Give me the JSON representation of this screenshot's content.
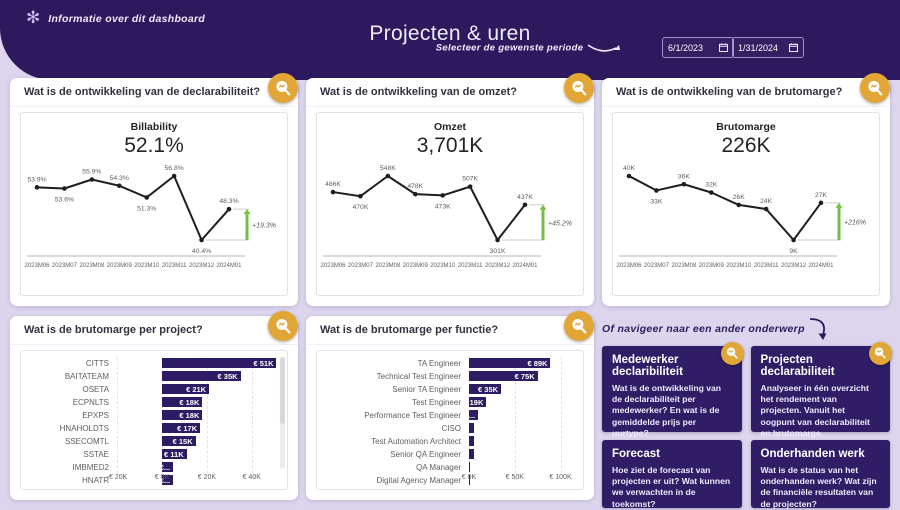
{
  "header": {
    "info_label": "Informatie over dit dashboard",
    "title": "Projecten & uren",
    "period_label": "Selecteer de  gewenste periode",
    "date_from": "6/1/2023",
    "date_to": "1/31/2024"
  },
  "panels": [
    {
      "question": "Wat is de ontwikkeling van de declarabiliteit?"
    },
    {
      "question": "Wat is de ontwikkeling van de omzet?"
    },
    {
      "question": "Wat is de ontwikkeling van de brutomarge?"
    },
    {
      "question": "Wat is de brutomarge per project?"
    },
    {
      "question": "Wat is de brutomarge per functie?"
    }
  ],
  "chart_data": [
    {
      "type": "line",
      "title": "Billability",
      "total": "52.1%",
      "x": [
        "2023M06",
        "2023M07",
        "2023M08",
        "2023M09",
        "2023M10",
        "2023M11",
        "2023M12",
        "2024M01"
      ],
      "values": [
        53.9,
        53.6,
        55.9,
        54.3,
        51.3,
        56.8,
        40.4,
        48.3
      ],
      "labels": [
        "53.9%",
        "53.6%",
        "55.9%",
        "54.3%",
        "51.3%",
        "56.8%",
        "40.4%",
        "48.3%"
      ],
      "change": "+19.3%"
    },
    {
      "type": "line",
      "title": "Omzet",
      "total": "3,701K",
      "x": [
        "2023M06",
        "2023M07",
        "2023M08",
        "2023M09",
        "2023M10",
        "2023M11",
        "2023M12",
        "2024M01"
      ],
      "values": [
        486,
        470,
        548,
        478,
        473,
        507,
        301,
        437
      ],
      "labels": [
        "486K",
        "470K",
        "548K",
        "478K",
        "473K",
        "507K",
        "301K",
        "437K"
      ],
      "change": "+45.2%"
    },
    {
      "type": "line",
      "title": "Brutomarge",
      "total": "226K",
      "x": [
        "2023M06",
        "2023M07",
        "2023M08",
        "2023M09",
        "2023M10",
        "2023M11",
        "2023M12",
        "2024M01"
      ],
      "values": [
        40,
        33,
        36,
        32,
        26,
        24,
        9,
        27
      ],
      "labels": [
        "40K",
        "33K",
        "36K",
        "32K",
        "26K",
        "24K",
        "9K",
        "27K"
      ],
      "change": "+216%"
    },
    {
      "type": "bar",
      "categories": [
        "CITTS",
        "BAITATEAM",
        "OSETA",
        "ECPNLTS",
        "EPXPS",
        "HNAHOLDTS",
        "SSECOMTL",
        "SSTAE",
        "IMBMED2",
        "HNATR"
      ],
      "values": [
        51,
        35,
        21,
        18,
        18,
        17,
        15,
        11,
        5,
        5
      ],
      "labels": [
        "€ 51K",
        "€ 35K",
        "€ 21K",
        "€ 18K",
        "€ 18K",
        "€ 17K",
        "€ 15K",
        "€ 11K",
        "€...",
        "€..."
      ],
      "axis": {
        "min": -20,
        "max": 53
      },
      "ticks": [
        {
          "label": "-€ 20K",
          "value": -20
        },
        {
          "label": "€ 0K",
          "value": 0
        },
        {
          "label": "€ 20K",
          "value": 20
        },
        {
          "label": "€ 40K",
          "value": 40
        }
      ]
    },
    {
      "type": "bar",
      "categories": [
        "TA Engineer",
        "Technical Test Engineer",
        "Senior TA Engineer",
        "Test Engineer",
        "Performance Test Engineer",
        "CISO",
        "Test Automation Architect",
        "Senior QA Engineer",
        "QA Manager",
        "Digital Agency Manager"
      ],
      "values": [
        89,
        75,
        35,
        19,
        10,
        6,
        6,
        5,
        1.5,
        1.2
      ],
      "labels": [
        "€ 89K",
        "€ 75K",
        "€ 35K",
        "€ 19K",
        "...",
        "",
        "",
        "",
        "",
        ""
      ],
      "axis": {
        "min": 0,
        "max": 118
      },
      "ticks": [
        {
          "label": "€ 0K",
          "value": 0
        },
        {
          "label": "€ 50K",
          "value": 50
        },
        {
          "label": "€ 100K",
          "value": 100
        }
      ]
    }
  ],
  "nav": {
    "heading": "Of navigeer naar een ander onderwerp",
    "cards": [
      {
        "title": "Medewerker declaribiliteit",
        "body": "Wat is de ontwikkeling van de declarabiliteit per medewerker? En wat is de gemiddelde prijs per uurtype?",
        "badge": true
      },
      {
        "title": "Projecten declarabiliteit",
        "body": "Analyseer in één overzicht het rendement van projecten. Vanuit het oogpunt van declarabiliteit en brutomarge.",
        "badge": true
      },
      {
        "title": "Forecast",
        "body": "Hoe ziet de forecast van projecten er uit? Wat kunnen we verwachten in de toekomst?",
        "badge": false
      },
      {
        "title": "Onderhanden werk",
        "body": "Wat is de status van het onderhanden werk? Wat zijn de financiële resultaten van de projecten?",
        "badge": false
      }
    ]
  },
  "colors": {
    "header_purple": "#2d195e",
    "card_purple": "#2f1d66",
    "bar_purple": "#2d1b64",
    "badge_gold": "#e2a636",
    "change_green": "#73bf44",
    "label_gray": "#605e5c",
    "line_black": "#1f1e1e"
  }
}
